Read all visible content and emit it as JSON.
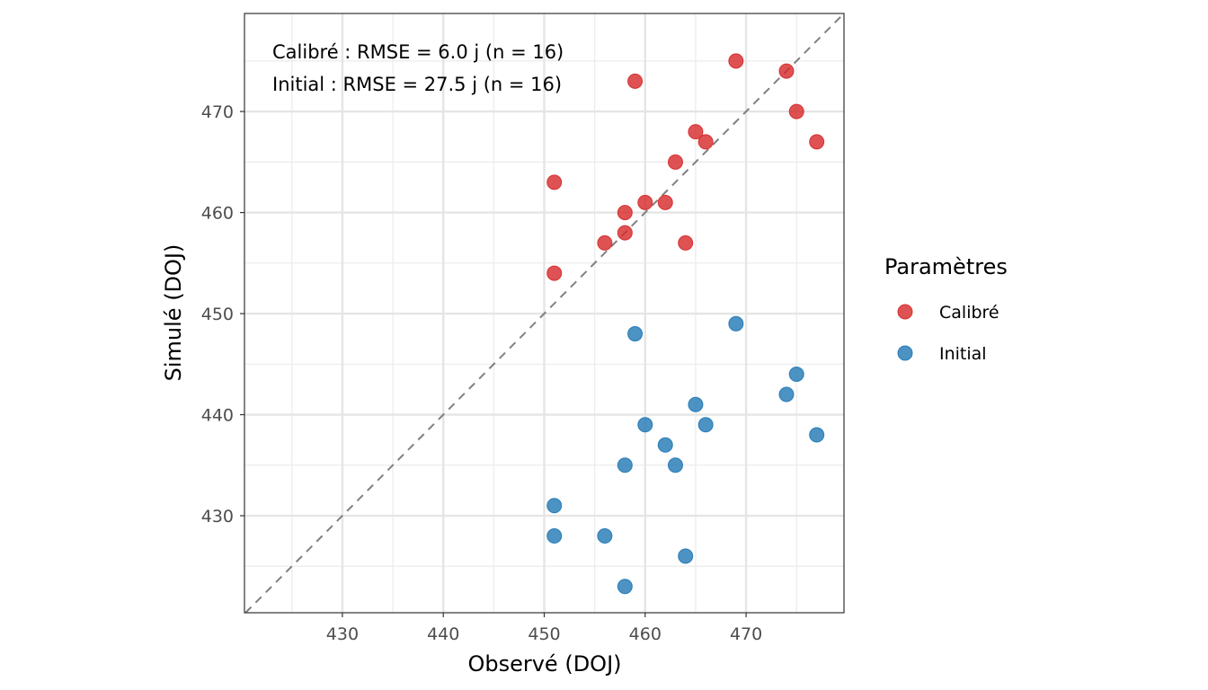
{
  "chart_data": {
    "type": "scatter",
    "title": "",
    "xlabel": "Observé (DOJ)",
    "ylabel": "Simulé (DOJ)",
    "xlim": [
      420.3,
      479.7
    ],
    "ylim": [
      420.4,
      479.7
    ],
    "xticks": [
      430,
      440,
      450,
      460,
      470
    ],
    "yticks": [
      430,
      440,
      450,
      460,
      470
    ],
    "xtick_labels": [
      "430",
      "440",
      "450",
      "460",
      "470"
    ],
    "ytick_labels": [
      "430",
      "440",
      "450",
      "460",
      "470"
    ],
    "grid": true,
    "reference_line": {
      "type": "identity",
      "style": "dashed",
      "color": "#808080"
    },
    "annotations": [
      "Calibré : RMSE = 6.0 j (n = 16)",
      "Initial : RMSE = 27.5 j (n = 16)"
    ],
    "legend": {
      "title": "Paramètres",
      "position": "right"
    },
    "series": [
      {
        "name": "Calibré",
        "color": "#d62728",
        "points": [
          [
            451,
            463
          ],
          [
            451,
            454
          ],
          [
            456,
            457
          ],
          [
            458,
            460
          ],
          [
            458,
            458
          ],
          [
            459,
            473
          ],
          [
            460,
            461
          ],
          [
            462,
            461
          ],
          [
            463,
            465
          ],
          [
            464,
            457
          ],
          [
            465,
            468
          ],
          [
            466,
            467
          ],
          [
            469,
            475
          ],
          [
            474,
            474
          ],
          [
            475,
            470
          ],
          [
            477,
            467
          ]
        ]
      },
      {
        "name": "Initial",
        "color": "#1f77b4",
        "points": [
          [
            451,
            431
          ],
          [
            451,
            428
          ],
          [
            456,
            428
          ],
          [
            458,
            435
          ],
          [
            458,
            423
          ],
          [
            459,
            448
          ],
          [
            460,
            439
          ],
          [
            462,
            437
          ],
          [
            463,
            435
          ],
          [
            464,
            426
          ],
          [
            465,
            441
          ],
          [
            466,
            439
          ],
          [
            469,
            449
          ],
          [
            474,
            442
          ],
          [
            475,
            444
          ],
          [
            477,
            438
          ]
        ]
      }
    ]
  }
}
